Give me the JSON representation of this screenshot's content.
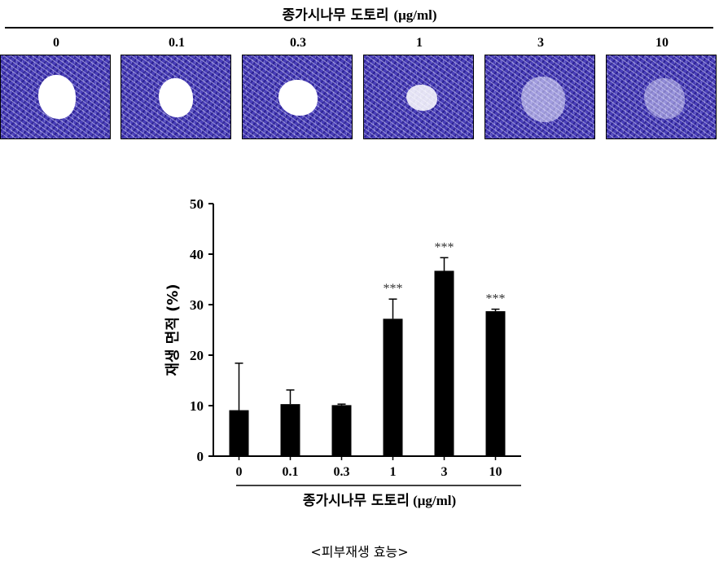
{
  "figure": {
    "top_title_main": "종가시나무 도토리",
    "top_title_unit": "(μg/ml)",
    "caption": "<피부재생 효능>",
    "micrographs": [
      {
        "label": "0"
      },
      {
        "label": "0.1"
      },
      {
        "label": "0.3"
      },
      {
        "label": "1"
      },
      {
        "label": "3"
      },
      {
        "label": "10"
      }
    ]
  },
  "chart_data": {
    "type": "bar",
    "categories": [
      "0",
      "0.1",
      "0.3",
      "1",
      "3",
      "10"
    ],
    "values": [
      9.1,
      10.3,
      10.1,
      27.2,
      36.7,
      28.7
    ],
    "errors": [
      9.3,
      2.8,
      0.2,
      3.9,
      2.6,
      0.4
    ],
    "annotations": [
      "",
      "",
      "",
      "***",
      "***",
      "***"
    ],
    "ylabel": "재생 면적 (%)",
    "xlabel_main": "종가시나무 도토리",
    "xlabel_unit": "(μg/ml)",
    "ylim": [
      0,
      50
    ],
    "yticks": [
      0,
      10,
      20,
      30,
      40,
      50
    ],
    "grid": false,
    "bar_color": "#000000"
  }
}
